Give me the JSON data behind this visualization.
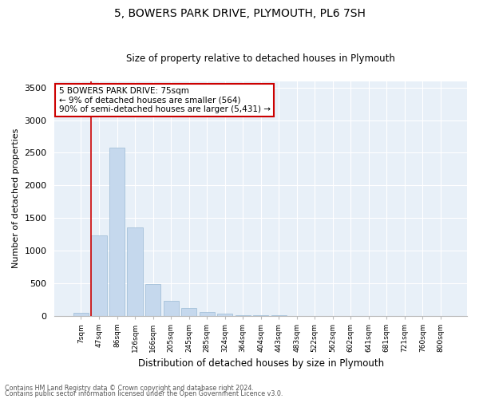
{
  "title": "5, BOWERS PARK DRIVE, PLYMOUTH, PL6 7SH",
  "subtitle": "Size of property relative to detached houses in Plymouth",
  "xlabel": "Distribution of detached houses by size in Plymouth",
  "ylabel": "Number of detached properties",
  "bar_color": "#c5d8ed",
  "bar_edge_color": "#9bbad4",
  "bg_color": "#e8f0f8",
  "annotation_box_color": "#cc0000",
  "vline_color": "#cc0000",
  "categories": [
    "7sqm",
    "47sqm",
    "86sqm",
    "126sqm",
    "166sqm",
    "205sqm",
    "245sqm",
    "285sqm",
    "324sqm",
    "364sqm",
    "404sqm",
    "443sqm",
    "483sqm",
    "522sqm",
    "562sqm",
    "602sqm",
    "641sqm",
    "681sqm",
    "721sqm",
    "760sqm",
    "800sqm"
  ],
  "values": [
    50,
    1230,
    2580,
    1350,
    490,
    235,
    120,
    55,
    30,
    15,
    8,
    5,
    3,
    0,
    0,
    0,
    0,
    0,
    0,
    0,
    0
  ],
  "vline_x_idx": 1,
  "annotation_text_line1": "5 BOWERS PARK DRIVE: 75sqm",
  "annotation_text_line2": "← 9% of detached houses are smaller (564)",
  "annotation_text_line3": "90% of semi-detached houses are larger (5,431) →",
  "ylim": [
    0,
    3600
  ],
  "yticks": [
    0,
    500,
    1000,
    1500,
    2000,
    2500,
    3000,
    3500
  ],
  "footer_line1": "Contains HM Land Registry data © Crown copyright and database right 2024.",
  "footer_line2": "Contains public sector information licensed under the Open Government Licence v3.0."
}
